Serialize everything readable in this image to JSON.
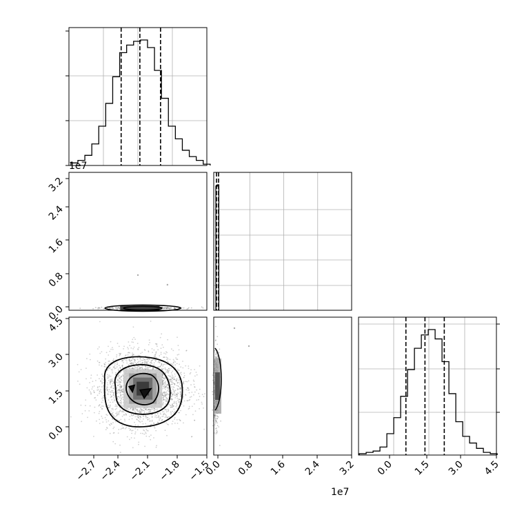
{
  "chart_data": [
    {
      "panel": "hist-param-1",
      "type": "histogram",
      "axis_label": "",
      "xlim": [
        -2.9,
        -1.5
      ],
      "quantiles": [
        -2.37,
        -2.18,
        -1.97
      ],
      "bins": {
        "start": -2.88,
        "width": 0.0707,
        "counts": [
          2,
          4,
          8,
          17,
          31,
          49,
          70,
          89,
          95,
          98,
          99,
          93,
          75,
          53,
          31,
          21,
          12,
          7,
          4,
          1
        ]
      }
    },
    {
      "panel": "hist-param-2",
      "type": "histogram",
      "axis_label": "",
      "xlim": [
        -0.05,
        3.2
      ],
      "offset_label": "1e7",
      "quantiles": [
        0.004,
        0.022
      ],
      "bins": {
        "start": 0.0,
        "width": 0.032,
        "counts": [
          95,
          100
        ]
      }
    },
    {
      "panel": "hist-param-3",
      "type": "histogram",
      "axis_label": "",
      "xlim": [
        -1.0,
        4.5
      ],
      "quantiles": [
        0.89,
        1.65,
        2.42
      ],
      "bins": {
        "start": -0.97,
        "width": 0.275,
        "counts": [
          1,
          2,
          3,
          6,
          16,
          28,
          44,
          64,
          80,
          90,
          94,
          87,
          70,
          46,
          25,
          14,
          9,
          5,
          2,
          1
        ]
      }
    },
    {
      "panel": "corner-1-2",
      "type": "scatter",
      "xlim": [
        -2.9,
        -1.5
      ],
      "ylim": [
        -0.05,
        3.2
      ],
      "y_offset_label": "1e7",
      "yticks": [
        "0.0",
        "0.8",
        "1.6",
        "2.4",
        "3.2"
      ],
      "center": [
        -2.15,
        0.0
      ],
      "spread": [
        0.22,
        0.003
      ]
    },
    {
      "panel": "corner-1-3",
      "type": "scatter",
      "xlim": [
        -2.9,
        -1.5
      ],
      "ylim": [
        -1.0,
        4.5
      ],
      "yticks": [
        "0.0",
        "1.5",
        "3.0",
        "4.5"
      ],
      "center": [
        -2.15,
        1.65
      ],
      "spread": [
        0.22,
        0.75
      ]
    },
    {
      "panel": "corner-2-3",
      "type": "scatter",
      "xlim": [
        -0.05,
        3.2
      ],
      "ylim": [
        -1.0,
        4.5
      ],
      "center": [
        0.0,
        1.65
      ],
      "spread": [
        0.003,
        0.75
      ]
    },
    {
      "panel": "bottom-x-axes",
      "x1_ticks": [
        "−2.7",
        "−2.4",
        "−2.1",
        "−1.8",
        "−1.5"
      ],
      "x2_ticks": [
        "0.0",
        "0.8",
        "1.6",
        "2.4",
        "3.2"
      ],
      "x2_offset_label": "1e7",
      "x3_ticks": [
        "0.0",
        "1.5",
        "3.0",
        "4.5"
      ]
    }
  ]
}
